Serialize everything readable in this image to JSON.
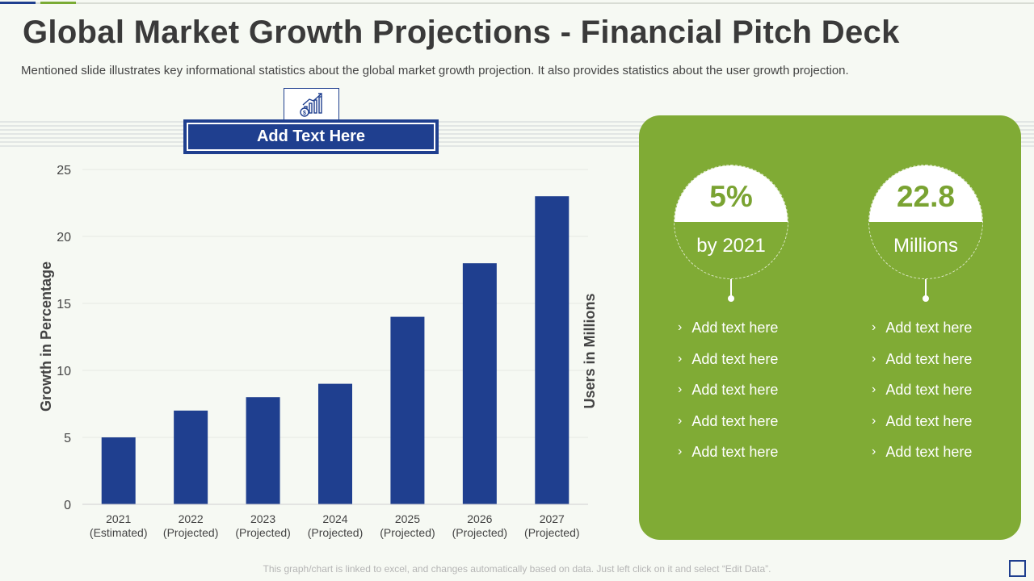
{
  "slide": {
    "title": "Global Market Growth Projections - Financial Pitch Deck",
    "subtitle": "Mentioned slide illustrates key informational statistics about the global market growth projection. It also provides statistics about the user growth projection.",
    "header_label": "Add Text Here",
    "footer_note": "This graph/chart is linked to excel, and changes automatically based on data. Just left click on it and select “Edit Data”."
  },
  "icons": {
    "header_icon": "growth-chart-dollar-icon"
  },
  "colors": {
    "bar": "#1f3f8f",
    "accent_green": "#80ab35",
    "header_blue": "#1f3f8f"
  },
  "chart_data": {
    "type": "bar",
    "title": "",
    "categories": [
      [
        "2021",
        "(Estimated)"
      ],
      [
        "2022",
        "(Projected)"
      ],
      [
        "2023",
        "(Projected)"
      ],
      [
        "2024",
        "(Projected)"
      ],
      [
        "2025",
        "(Projected)"
      ],
      [
        "2026",
        "(Projected)"
      ],
      [
        "2027",
        "(Projected)"
      ]
    ],
    "values": [
      5,
      7,
      8,
      9,
      14,
      18,
      23
    ],
    "ylabel": "Growth in Percentage",
    "y2label": "Users in Millions",
    "xlabel": "",
    "ylim": [
      0,
      25
    ],
    "yticks": [
      0,
      5,
      10,
      15,
      20,
      25
    ],
    "grid": true
  },
  "stats": [
    {
      "value": "5%",
      "caption": "by 2021",
      "items": [
        "Add text here",
        "Add text here",
        "Add text here",
        "Add text here",
        "Add text here"
      ]
    },
    {
      "value": "22.8",
      "caption": "Millions",
      "items": [
        "Add text here",
        "Add text here",
        "Add text here",
        "Add text here",
        "Add text here"
      ]
    }
  ]
}
